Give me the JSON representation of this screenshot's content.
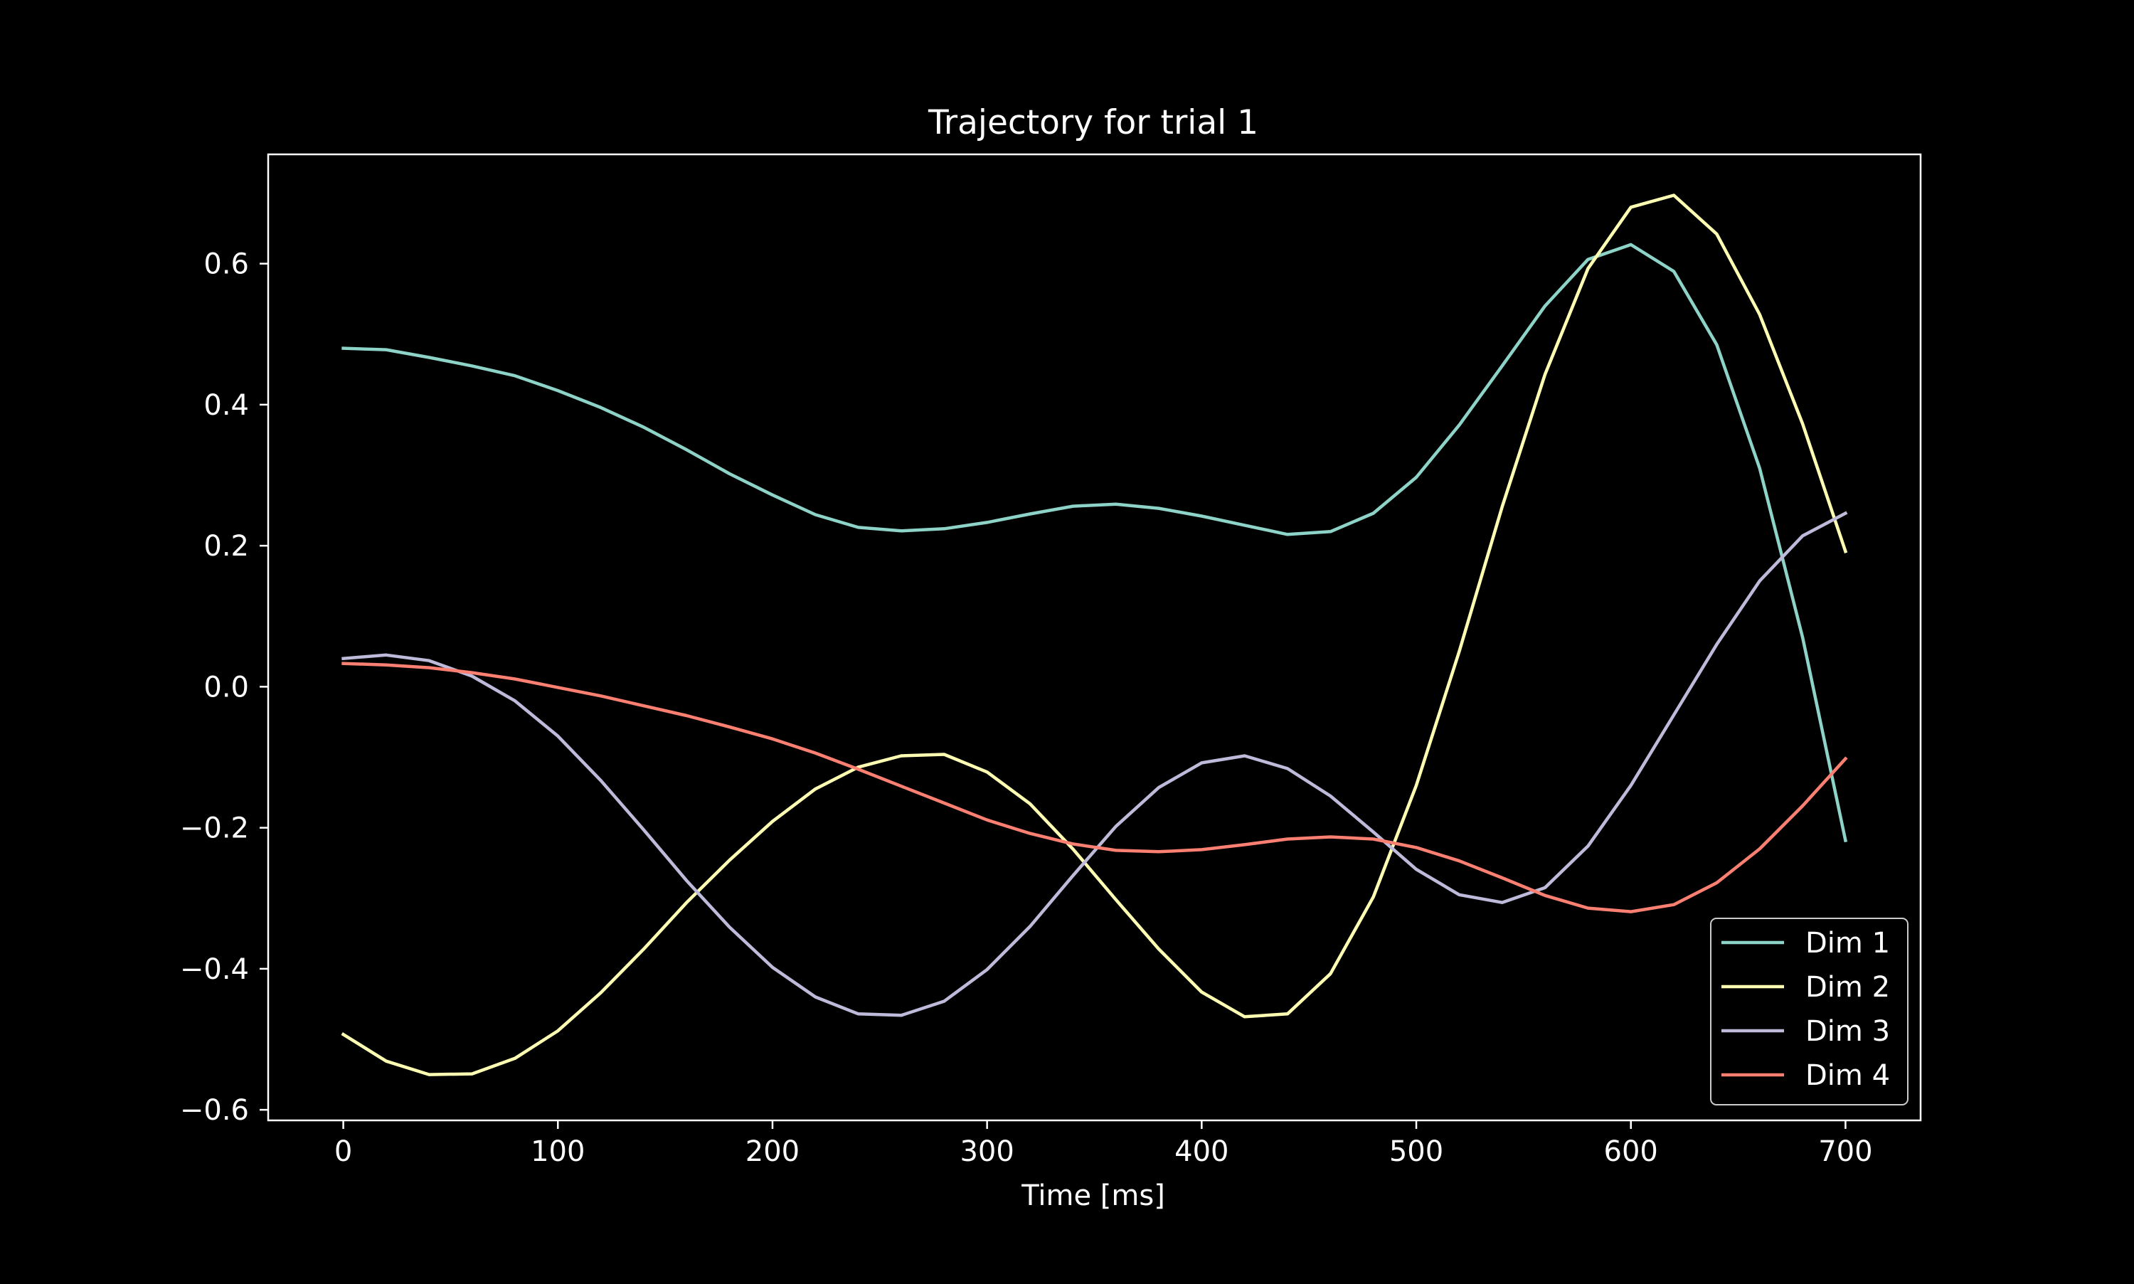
{
  "chart_data": {
    "type": "line",
    "title": "Trajectory for trial 1",
    "xlabel": "Time [ms]",
    "ylabel": "",
    "xlim": [
      -35,
      735
    ],
    "ylim": [
      -0.615,
      0.755
    ],
    "xticks": [
      0,
      100,
      200,
      300,
      400,
      500,
      600,
      700
    ],
    "xtick_labels": [
      "0",
      "100",
      "200",
      "300",
      "400",
      "500",
      "600",
      "700"
    ],
    "yticks": [
      -0.6,
      -0.4,
      -0.2,
      0.0,
      0.2,
      0.4,
      0.6
    ],
    "ytick_labels": [
      "−0.6",
      "−0.4",
      "−0.2",
      "0.0",
      "0.2",
      "0.4",
      "0.6"
    ],
    "grid": false,
    "legend_position": "lower-right",
    "x": [
      0,
      20,
      40,
      60,
      80,
      100,
      120,
      140,
      160,
      180,
      200,
      220,
      240,
      260,
      280,
      300,
      320,
      340,
      360,
      380,
      400,
      420,
      440,
      460,
      480,
      500,
      520,
      540,
      560,
      580,
      600,
      620,
      640,
      660,
      680,
      700
    ],
    "series": [
      {
        "name": "Dim 1",
        "color": "#8dd3c7",
        "values": [
          0.48,
          0.478,
          0.467,
          0.455,
          0.441,
          0.42,
          0.396,
          0.368,
          0.336,
          0.302,
          0.272,
          0.244,
          0.226,
          0.221,
          0.224,
          0.233,
          0.245,
          0.256,
          0.259,
          0.253,
          0.242,
          0.229,
          0.216,
          0.22,
          0.246,
          0.297,
          0.371,
          0.455,
          0.54,
          0.606,
          0.627,
          0.589,
          0.485,
          0.31,
          0.07,
          -0.218
        ]
      },
      {
        "name": "Dim 2",
        "color": "#ffffb3",
        "values": [
          -0.493,
          -0.531,
          -0.55,
          -0.549,
          -0.527,
          -0.488,
          -0.434,
          -0.372,
          -0.306,
          -0.246,
          -0.191,
          -0.145,
          -0.114,
          -0.098,
          -0.096,
          -0.121,
          -0.166,
          -0.23,
          -0.302,
          -0.372,
          -0.433,
          -0.468,
          -0.464,
          -0.407,
          -0.298,
          -0.14,
          0.05,
          0.255,
          0.443,
          0.593,
          0.68,
          0.697,
          0.642,
          0.528,
          0.373,
          0.192
        ]
      },
      {
        "name": "Dim 3",
        "color": "#bebada",
        "values": [
          0.04,
          0.045,
          0.037,
          0.015,
          -0.02,
          -0.07,
          -0.133,
          -0.203,
          -0.275,
          -0.341,
          -0.398,
          -0.44,
          -0.464,
          -0.466,
          -0.446,
          -0.401,
          -0.34,
          -0.268,
          -0.198,
          -0.143,
          -0.108,
          -0.098,
          -0.116,
          -0.155,
          -0.206,
          -0.259,
          -0.295,
          -0.306,
          -0.285,
          -0.226,
          -0.14,
          -0.04,
          0.06,
          0.15,
          0.214,
          0.246
        ]
      },
      {
        "name": "Dim 4",
        "color": "#fb8072",
        "values": [
          0.033,
          0.031,
          0.027,
          0.02,
          0.011,
          -0.001,
          -0.013,
          -0.027,
          -0.041,
          -0.057,
          -0.074,
          -0.094,
          -0.117,
          -0.141,
          -0.165,
          -0.189,
          -0.208,
          -0.223,
          -0.232,
          -0.234,
          -0.231,
          -0.224,
          -0.216,
          -0.213,
          -0.216,
          -0.228,
          -0.247,
          -0.271,
          -0.296,
          -0.314,
          -0.319,
          -0.309,
          -0.278,
          -0.23,
          -0.169,
          -0.102
        ]
      }
    ]
  }
}
